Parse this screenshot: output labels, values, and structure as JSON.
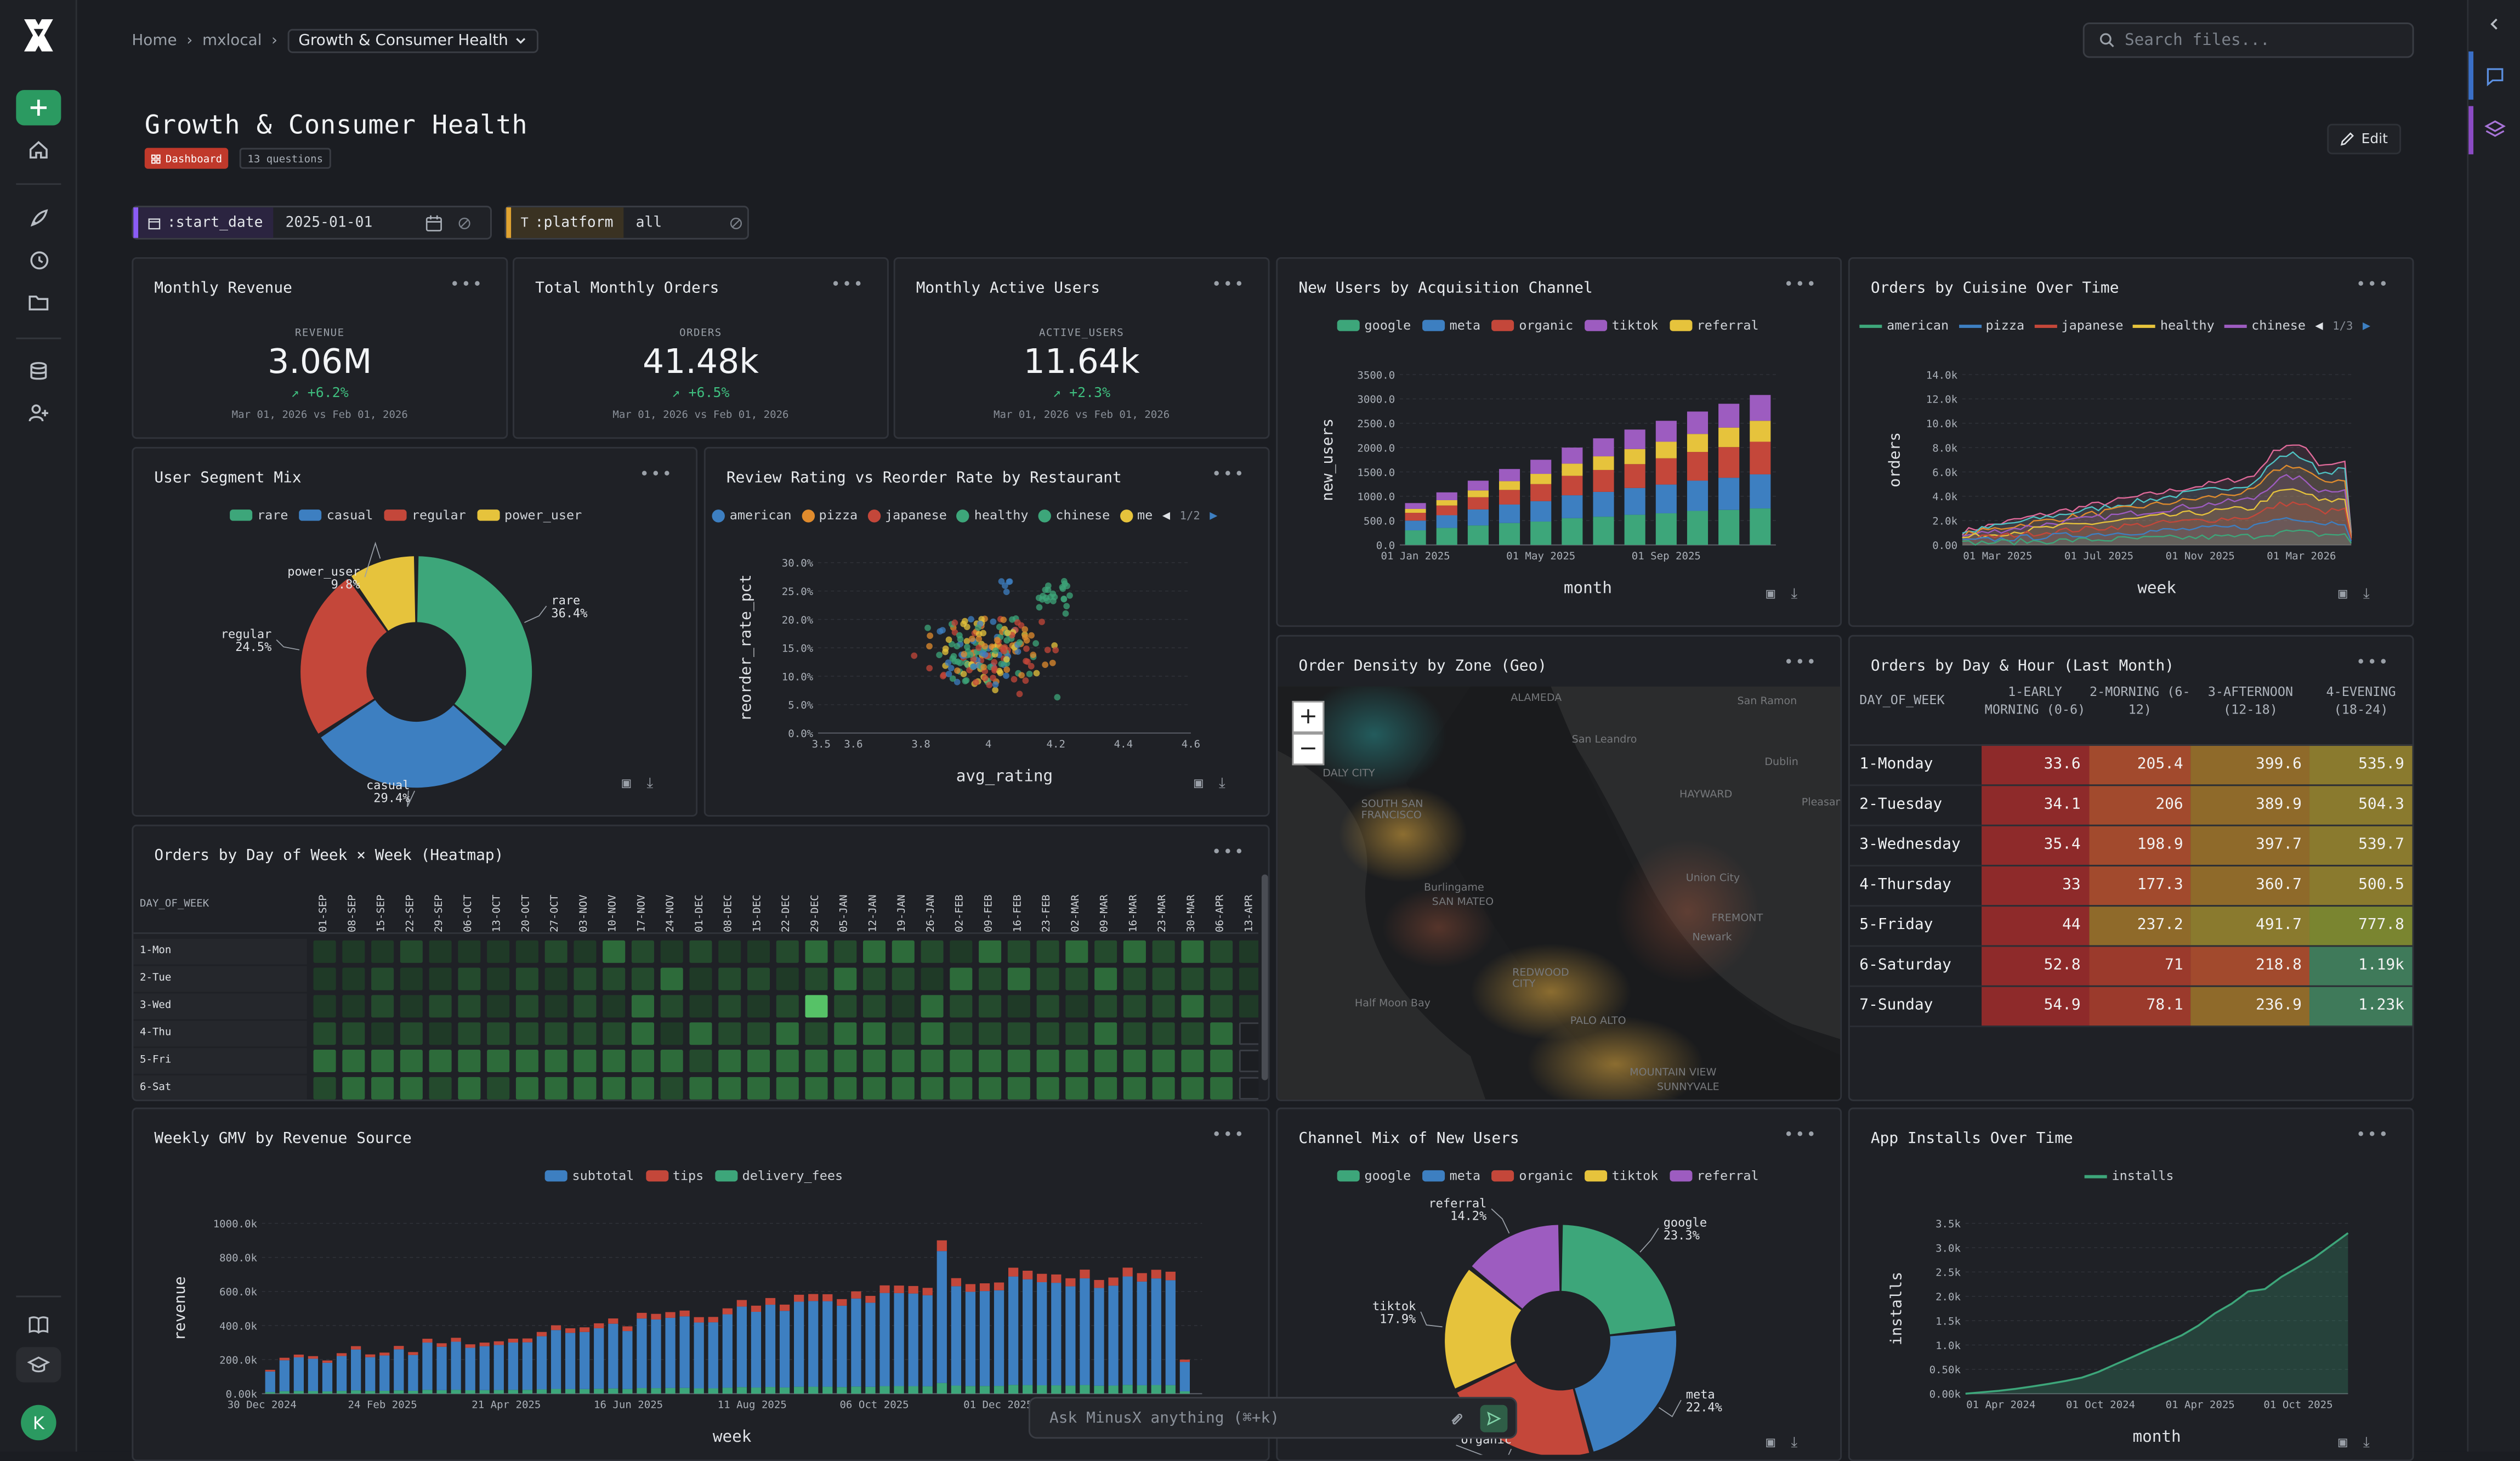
{
  "breadcrumb": {
    "home": "Home",
    "workspace": "mxlocal",
    "current": "Growth & Consumer Health"
  },
  "search": {
    "placeholder": "Search files..."
  },
  "dashboard": {
    "title": "Growth & Consumer Health",
    "badge": "Dashboard",
    "questions": "13 questions",
    "edit_label": "Edit"
  },
  "filters": {
    "start_date": {
      "name": ":start_date",
      "value": "2025-01-01"
    },
    "platform": {
      "name": ":platform",
      "value": "all"
    }
  },
  "kpis": [
    {
      "title": "Monthly Revenue",
      "label": "REVENUE",
      "value": "3.06M",
      "change": "+6.2%",
      "range": "Mar 01, 2026 vs Feb 01, 2026"
    },
    {
      "title": "Total Monthly Orders",
      "label": "ORDERS",
      "value": "41.48k",
      "change": "+6.5%",
      "range": "Mar 01, 2026 vs Feb 01, 2026"
    },
    {
      "title": "Monthly Active Users",
      "label": "ACTIVE_USERS",
      "value": "11.64k",
      "change": "+2.3%",
      "range": "Mar 01, 2026 vs Feb 01, 2026"
    }
  ],
  "colors": {
    "green": "#3da67a",
    "blue": "#3d7fc1",
    "red": "#c4473a",
    "yellow": "#e6c33c",
    "purple": "#9d5cc0",
    "orange": "#e08b2d"
  },
  "chart_data": [
    {
      "id": "new_users",
      "type": "bar",
      "stacked": true,
      "title": "New Users by Acquisition Channel",
      "xlabel": "month",
      "ylabel": "new_users",
      "x_tick_labels": [
        "01 Jan 2025",
        "01 May 2025",
        "01 Sep 2025"
      ],
      "y_tick_labels": [
        "0.0",
        "500.0",
        "1000.0",
        "1500.0",
        "2000.0",
        "2500.0",
        "3000.0",
        "3500.0"
      ],
      "ylim": [
        0,
        3500
      ],
      "categories": [
        "Jan 2025",
        "Feb 2025",
        "Mar 2025",
        "Apr 2025",
        "May 2025",
        "Jun 2025",
        "Jul 2025",
        "Aug 2025",
        "Sep 2025",
        "Oct 2025",
        "Nov 2025",
        "Dec 2025"
      ],
      "series": [
        {
          "name": "google",
          "values": [
            300,
            350,
            400,
            450,
            480,
            550,
            580,
            620,
            650,
            700,
            720,
            750
          ]
        },
        {
          "name": "meta",
          "values": [
            200,
            260,
            330,
            380,
            420,
            470,
            510,
            550,
            590,
            620,
            660,
            700
          ]
        },
        {
          "name": "organic",
          "values": [
            160,
            200,
            250,
            300,
            350,
            400,
            450,
            490,
            540,
            590,
            630,
            670
          ]
        },
        {
          "name": "tiktok",
          "values": [
            120,
            160,
            200,
            250,
            290,
            330,
            370,
            400,
            430,
            460,
            490,
            530
          ]
        },
        {
          "name": "referral",
          "values": [
            80,
            110,
            140,
            180,
            210,
            250,
            280,
            310,
            340,
            370,
            400,
            430
          ]
        }
      ]
    },
    {
      "id": "orders_cuisine",
      "type": "area",
      "title": "Orders by Cuisine Over Time",
      "xlabel": "week",
      "ylabel": "orders",
      "x_tick_labels": [
        "01 Mar 2025",
        "01 Jul 2025",
        "01 Nov 2025",
        "01 Mar 2026"
      ],
      "y_tick_labels": [
        "0.00",
        "2.0k",
        "4.0k",
        "6.0k",
        "8.0k",
        "10.0k",
        "12.0k",
        "14.0k"
      ],
      "ylim": [
        0,
        14000
      ],
      "legend": [
        "american",
        "pizza",
        "japanese",
        "healthy",
        "chinese"
      ],
      "legend_page": "1/3"
    },
    {
      "id": "segment_mix",
      "type": "pie",
      "title": "User Segment Mix",
      "categories": [
        "rare",
        "casual",
        "regular",
        "power_user"
      ],
      "values": [
        36.4,
        29.4,
        24.5,
        9.8
      ],
      "labels": [
        "rare\n36.4%",
        "casual\n29.4%",
        "regular\n24.5%",
        "power_user\n9.8%"
      ]
    },
    {
      "id": "review_reorder",
      "type": "scatter",
      "title": "Review Rating vs Reorder Rate by Restaurant",
      "xlabel": "avg_rating",
      "ylabel": "reorder_rate_pct",
      "x_tick_labels": [
        "3.5",
        "3.6",
        "3.8",
        "4",
        "4.2",
        "4.4",
        "4.6"
      ],
      "y_tick_labels": [
        "0.0%",
        "5.0%",
        "10.0%",
        "15.0%",
        "20.0%",
        "25.0%",
        "30.0%"
      ],
      "xlim": [
        3.5,
        4.6
      ],
      "ylim": [
        0,
        30
      ],
      "legend": [
        "american",
        "pizza",
        "japanese",
        "healthy",
        "chinese",
        "me"
      ],
      "legend_page": "1/2"
    },
    {
      "id": "heatmap",
      "type": "heatmap",
      "title": "Orders by Day of Week × Week (Heatmap)",
      "row_header": "DAY_OF_WEEK",
      "rows": [
        "1-Mon",
        "2-Tue",
        "3-Wed",
        "4-Thu",
        "5-Fri",
        "6-Sat"
      ],
      "columns": [
        "01-SEP",
        "08-SEP",
        "15-SEP",
        "22-SEP",
        "29-SEP",
        "06-OCT",
        "13-OCT",
        "20-OCT",
        "27-OCT",
        "03-NOV",
        "10-NOV",
        "17-NOV",
        "24-NOV",
        "01-DEC",
        "08-DEC",
        "15-DEC",
        "22-DEC",
        "29-DEC",
        "05-JAN",
        "12-JAN",
        "19-JAN",
        "26-JAN",
        "02-FEB",
        "09-FEB",
        "16-FEB",
        "23-FEB",
        "02-MAR",
        "09-MAR",
        "16-MAR",
        "23-MAR",
        "30-MAR",
        "06-APR",
        "13-APR"
      ],
      "values": [
        [
          1,
          1,
          1,
          2,
          1,
          1,
          1,
          1,
          2,
          1,
          3,
          2,
          1,
          2,
          1,
          1,
          2,
          3,
          2,
          3,
          3,
          2,
          1,
          3,
          2,
          2,
          3,
          2,
          3,
          2,
          3,
          2,
          1
        ],
        [
          1,
          1,
          2,
          1,
          1,
          2,
          1,
          2,
          1,
          2,
          2,
          2,
          3,
          1,
          2,
          2,
          1,
          2,
          3,
          2,
          2,
          1,
          3,
          2,
          3,
          2,
          2,
          3,
          2,
          2,
          2,
          2,
          1
        ],
        [
          1,
          1,
          2,
          1,
          2,
          2,
          1,
          2,
          1,
          2,
          1,
          3,
          2,
          1,
          2,
          1,
          2,
          5,
          2,
          2,
          1,
          3,
          2,
          2,
          1,
          2,
          1,
          2,
          2,
          2,
          3,
          2,
          1
        ],
        [
          2,
          2,
          1,
          2,
          1,
          2,
          2,
          2,
          2,
          2,
          2,
          3,
          1,
          3,
          2,
          2,
          3,
          2,
          3,
          3,
          2,
          3,
          2,
          2,
          2,
          2,
          2,
          3,
          2,
          2,
          2,
          3,
          0
        ],
        [
          3,
          3,
          3,
          3,
          3,
          3,
          3,
          3,
          3,
          3,
          3,
          3,
          3,
          2,
          3,
          3,
          3,
          3,
          3,
          3,
          3,
          3,
          3,
          3,
          3,
          3,
          3,
          3,
          3,
          3,
          3,
          3,
          0
        ],
        [
          2,
          3,
          3,
          3,
          2,
          3,
          2,
          3,
          3,
          3,
          3,
          3,
          2,
          3,
          3,
          3,
          3,
          3,
          3,
          3,
          3,
          3,
          3,
          3,
          3,
          3,
          3,
          3,
          3,
          3,
          3,
          3,
          0
        ]
      ]
    },
    {
      "id": "day_hour",
      "type": "table",
      "title": "Orders by Day & Hour (Last Month)",
      "columns": [
        "DAY_OF_WEEK",
        "1-EARLY MORNING (0-6)",
        "2-MORNING (6-12)",
        "3-AFTERNOON (12-18)",
        "4-EVENING (18-24)"
      ],
      "rows": [
        [
          "1-Monday",
          "33.6",
          "205.4",
          "399.6",
          "535.9"
        ],
        [
          "2-Tuesday",
          "34.1",
          "206",
          "389.9",
          "504.3"
        ],
        [
          "3-Wednesday",
          "35.4",
          "198.9",
          "397.7",
          "539.7"
        ],
        [
          "4-Thursday",
          "33",
          "177.3",
          "360.7",
          "500.5"
        ],
        [
          "5-Friday",
          "44",
          "237.2",
          "491.7",
          "777.8"
        ],
        [
          "6-Saturday",
          "52.8",
          "71",
          "218.8",
          "1.19k"
        ],
        [
          "7-Sunday",
          "54.9",
          "78.1",
          "236.9",
          "1.23k"
        ]
      ]
    },
    {
      "id": "weekly_gmv",
      "type": "bar",
      "stacked": true,
      "title": "Weekly GMV by Revenue Source",
      "xlabel": "week",
      "ylabel": "revenue",
      "x_tick_labels": [
        "30 Dec 2024",
        "24 Feb 2025",
        "21 Apr 2025",
        "16 Jun 2025",
        "11 Aug 2025",
        "06 Oct 2025",
        "01 Dec 2025",
        "26"
      ],
      "y_tick_labels": [
        "0.00k",
        "200.0k",
        "400.0k",
        "600.0k",
        "800.0k",
        "1000.0k"
      ],
      "ylim": [
        0,
        1000000
      ],
      "legend": [
        "subtotal",
        "tips",
        "delivery_fees"
      ]
    },
    {
      "id": "channel_mix",
      "type": "pie",
      "title": "Channel Mix of New Users",
      "categories": [
        "google",
        "meta",
        "organic",
        "tiktok",
        "referral"
      ],
      "values": [
        23.3,
        22.4,
        22.2,
        17.9,
        14.2
      ],
      "labels": [
        "google\n23.3%",
        "meta\n22.4%",
        "organic",
        "tiktok\n17.9%",
        "referral\n14.2%"
      ]
    },
    {
      "id": "app_installs",
      "type": "area",
      "title": "App Installs Over Time",
      "xlabel": "month",
      "ylabel": "installs",
      "x_tick_labels": [
        "01 Apr 2024",
        "01 Oct 2024",
        "01 Apr 2025",
        "01 Oct 2025"
      ],
      "y_tick_labels": [
        "0.00k",
        "0.50k",
        "1.0k",
        "1.5k",
        "2.0k",
        "2.5k",
        "3.0k",
        "3.5k"
      ],
      "ylim": [
        0,
        3500
      ],
      "series": [
        {
          "name": "installs",
          "values": [
            0,
            30,
            60,
            100,
            150,
            200,
            260,
            330,
            450,
            600,
            750,
            900,
            1050,
            1200,
            1400,
            1650,
            1850,
            2100,
            2150,
            2400,
            2600,
            2800,
            3050,
            3300
          ]
        }
      ]
    }
  ],
  "map": {
    "title": "Order Density by Zone (Geo)",
    "places": [
      "ALAMEDA",
      "San Ramon",
      "San Leandro",
      "Dublin",
      "HAYWARD",
      "Pleasan",
      "DALY CITY",
      "SOUTH SAN FRANCISCO",
      "Union City",
      "FREMONT",
      "Burlingame",
      "SAN MATEO",
      "Newark",
      "Half Moon Bay",
      "REDWOOD CITY",
      "PALO ALTO",
      "MOUNTAIN VIEW",
      "SUNNYVALE"
    ]
  },
  "chat": {
    "placeholder": "Ask MinusX anything (⌘+k)"
  }
}
